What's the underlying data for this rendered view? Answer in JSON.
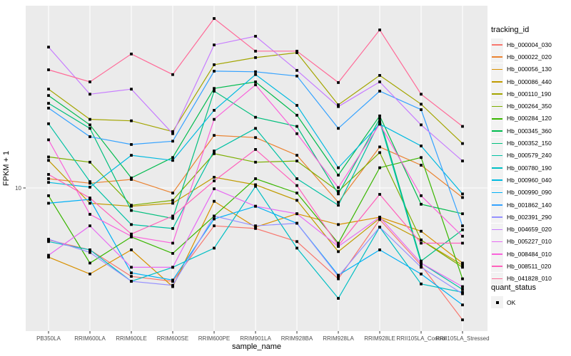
{
  "chart_data": {
    "type": "line",
    "title": "",
    "xlabel": "sample_name",
    "ylabel": "FPKM + 1",
    "y_scale": "log10",
    "y_ticks": [
      {
        "value": 10,
        "label": "10"
      }
    ],
    "ylim_log10": [
      0.24,
      1.97
    ],
    "grid": "major-on-grey-panel",
    "panel_bg": "#EBEBEB",
    "grid_color": "#FFFFFF",
    "axis_text_color": "#4D4D4D",
    "point_marker": "filled-black-square",
    "legend_position": "right",
    "categories": [
      "PB350LA",
      "RRIM600LA",
      "RRIM600LE",
      "RRIM600SE",
      "RRIM600PE",
      "RRIM901LA",
      "RRIM928BA",
      "RRIM928LA",
      "RRIM928LE",
      "RRII105LA_Control",
      "RRII105LA_Stressed"
    ],
    "legend_title": "tracking_id",
    "series": [
      {
        "name": "Hb_000004_030",
        "color": "#F8766D",
        "values": [
          5.3,
          4.7,
          3.4,
          3.2,
          6.3,
          6.1,
          5.2,
          3.3,
          6.8,
          3.9,
          2.0
        ]
      },
      {
        "name": "Hb_000022_020",
        "color": "#EA8331",
        "values": [
          11.2,
          10.6,
          11.1,
          9.4,
          19.0,
          18.5,
          14.9,
          8.4,
          16.5,
          13.2,
          8.9
        ]
      },
      {
        "name": "Hb_000056_130",
        "color": "#D89000",
        "values": [
          4.3,
          3.5,
          4.7,
          3.0,
          8.5,
          6.2,
          7.3,
          6.4,
          7.0,
          5.9,
          4.0
        ]
      },
      {
        "name": "Hb_000086_440",
        "color": "#C09B00",
        "values": [
          14.0,
          8.3,
          8.0,
          8.3,
          11.4,
          10.4,
          8.6,
          4.6,
          6.9,
          5.3,
          3.9
        ]
      },
      {
        "name": "Hb_000110_190",
        "color": "#A3A500",
        "values": [
          33.4,
          23.1,
          22.7,
          19.9,
          45.0,
          49.1,
          52.1,
          27.6,
          39.5,
          27.8,
          17.2
        ]
      },
      {
        "name": "Hb_000264_350",
        "color": "#7CAE00",
        "values": [
          14.6,
          13.7,
          8.1,
          8.6,
          15.2,
          13.7,
          13.9,
          9.6,
          15.4,
          5.3,
          3.8
        ]
      },
      {
        "name": "Hb_000284_120",
        "color": "#39B600",
        "values": [
          9.1,
          4.0,
          5.5,
          4.5,
          7.1,
          11.2,
          9.4,
          5.1,
          12.8,
          14.5,
          3.3
        ]
      },
      {
        "name": "Hb_000345_360",
        "color": "#00BB4E",
        "values": [
          30.9,
          21.6,
          11.3,
          14.5,
          33.7,
          36.5,
          24.3,
          11.7,
          24.1,
          8.2,
          7.3
        ]
      },
      {
        "name": "Hb_000352_150",
        "color": "#00BF7D",
        "values": [
          28.1,
          20.7,
          7.6,
          6.9,
          32.6,
          23.7,
          21.2,
          9.3,
          23.3,
          4.1,
          6.0
        ]
      },
      {
        "name": "Hb_000579_240",
        "color": "#00C1A3",
        "values": [
          21.9,
          10.8,
          6.4,
          6.1,
          15.7,
          20.7,
          11.2,
          8.1,
          22.5,
          4.0,
          2.9
        ]
      },
      {
        "name": "Hb_000780_190",
        "color": "#00BFC4",
        "values": [
          5.2,
          4.7,
          3.2,
          3.8,
          4.8,
          10.2,
          4.8,
          2.6,
          6.2,
          3.1,
          2.8
        ]
      },
      {
        "name": "Hb_000960_040",
        "color": "#00BAE0",
        "values": [
          10.7,
          10.1,
          14.9,
          14.0,
          25.8,
          39.9,
          27.4,
          12.8,
          21.8,
          16.7,
          9.3
        ]
      },
      {
        "name": "Hb_000990_090",
        "color": "#00B0F6",
        "values": [
          8.3,
          8.7,
          3.55,
          3.25,
          6.85,
          8.0,
          6.5,
          3.45,
          4.7,
          3.5,
          2.4
        ]
      },
      {
        "name": "Hb_001862_140",
        "color": "#35A2FF",
        "values": [
          26.5,
          18.7,
          17.0,
          17.7,
          41.6,
          41.3,
          39.2,
          20.7,
          32.6,
          26.0,
          6.3
        ]
      },
      {
        "name": "Hb_002391_290",
        "color": "#9590FF",
        "values": [
          5.35,
          4.55,
          3.2,
          3.05,
          7.1,
          6.3,
          6.5,
          3.4,
          6.2,
          3.8,
          2.75
        ]
      },
      {
        "name": "Hb_004659_020",
        "color": "#C77CFF",
        "values": [
          55.8,
          31.4,
          33.4,
          19.4,
          57.3,
          63.7,
          42.0,
          27.0,
          36.5,
          21.6,
          13.9
        ]
      },
      {
        "name": "Hb_005227_010",
        "color": "#E76BF3",
        "values": [
          4.4,
          6.3,
          3.8,
          3.8,
          9.9,
          8.0,
          7.3,
          4.9,
          7.0,
          4.0,
          3.0
        ]
      },
      {
        "name": "Hb_008484_010",
        "color": "#FA62DB",
        "values": [
          18.0,
          7.25,
          5.55,
          5.1,
          23.1,
          35.2,
          19.4,
          10.05,
          21.8,
          9.1,
          5.55
        ]
      },
      {
        "name": "Hb_008511_020",
        "color": "#FF62BC",
        "values": [
          11.8,
          8.85,
          5.7,
          7.1,
          10.9,
          16.0,
          10.3,
          4.95,
          9.25,
          5.1,
          5.1
        ]
      },
      {
        "name": "Hb_041828_010",
        "color": "#FF6A98",
        "values": [
          42.3,
          36.5,
          51.3,
          39.9,
          79.1,
          53.1,
          53.1,
          36.2,
          68.8,
          31.4,
          21.2
        ]
      }
    ],
    "legend2_title": "quant_status",
    "legend2_items": [
      {
        "label": "OK",
        "marker": "black-square"
      }
    ]
  }
}
